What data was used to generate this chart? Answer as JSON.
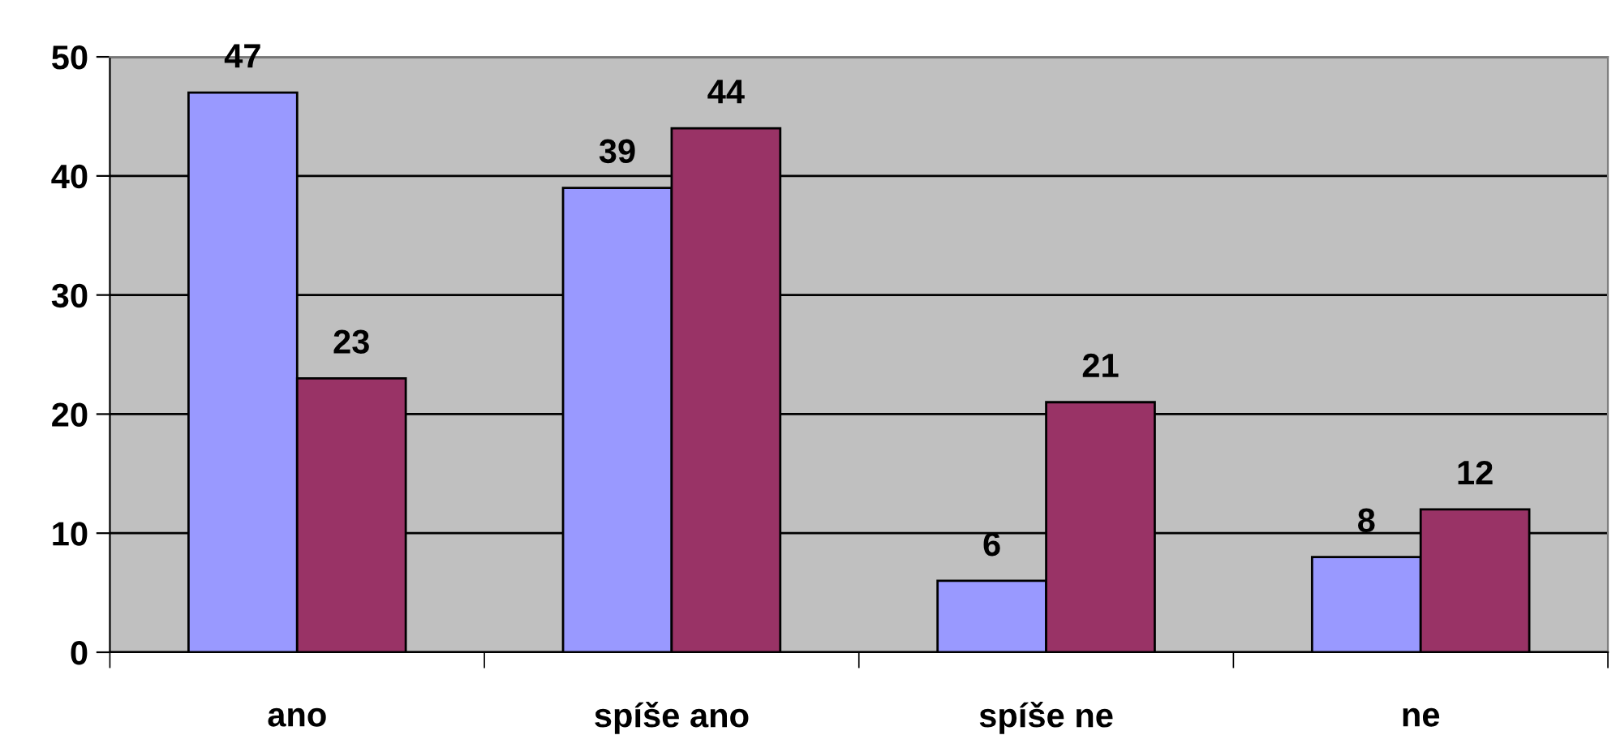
{
  "chart_data": {
    "type": "bar",
    "categories": [
      "ano",
      "spíše ano",
      "spíše ne",
      "ne"
    ],
    "series": [
      {
        "color": "#9999ff",
        "values": [
          47,
          39,
          6,
          8
        ]
      },
      {
        "color": "#993366",
        "values": [
          23,
          44,
          21,
          12
        ]
      }
    ],
    "ylim": [
      0,
      50
    ],
    "yticks": [
      0,
      10,
      20,
      30,
      40,
      50
    ],
    "grid": "y",
    "data_labels": true
  }
}
